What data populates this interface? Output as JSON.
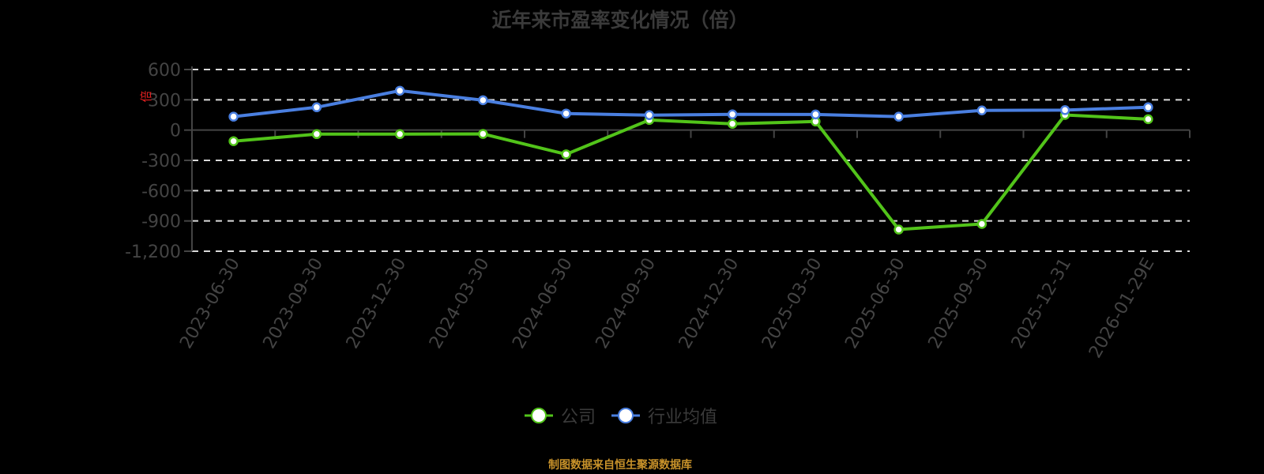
{
  "title": "近年来市盈率变化情况（倍）",
  "y_axis_unit_label": "倍",
  "legend": [
    {
      "name": "公司",
      "color": "#52c41a"
    },
    {
      "name": "行业均值",
      "color": "#4a7fe0"
    }
  ],
  "footer": "制图数据来自恒生聚源数据库",
  "chart_data": {
    "type": "line",
    "title": "近年来市盈率变化情况（倍）",
    "xlabel": "",
    "ylabel": "倍",
    "categories": [
      "2023-06-30",
      "2023-09-30",
      "2023-12-30",
      "2024-03-30",
      "2024-06-30",
      "2024-09-30",
      "2024-12-30",
      "2025-03-30",
      "2025-06-30",
      "2025-09-30",
      "2025-12-31",
      "2026-01-29E"
    ],
    "series": [
      {
        "name": "公司",
        "color": "#52c41a",
        "values": [
          -110,
          -40,
          -40,
          -38,
          -240,
          100,
          62,
          85,
          -985,
          -930,
          150,
          108
        ]
      },
      {
        "name": "行业均值",
        "color": "#4a7fe0",
        "values": [
          133,
          226,
          390,
          296,
          164,
          148,
          156,
          155,
          133,
          195,
          198,
          226
        ]
      }
    ],
    "yticks": [
      "600",
      "300",
      "0",
      "-300",
      "-600",
      "-900",
      "-1,200"
    ],
    "ylim": [
      -1200,
      600
    ],
    "grid": true,
    "legend_position": "bottom"
  }
}
